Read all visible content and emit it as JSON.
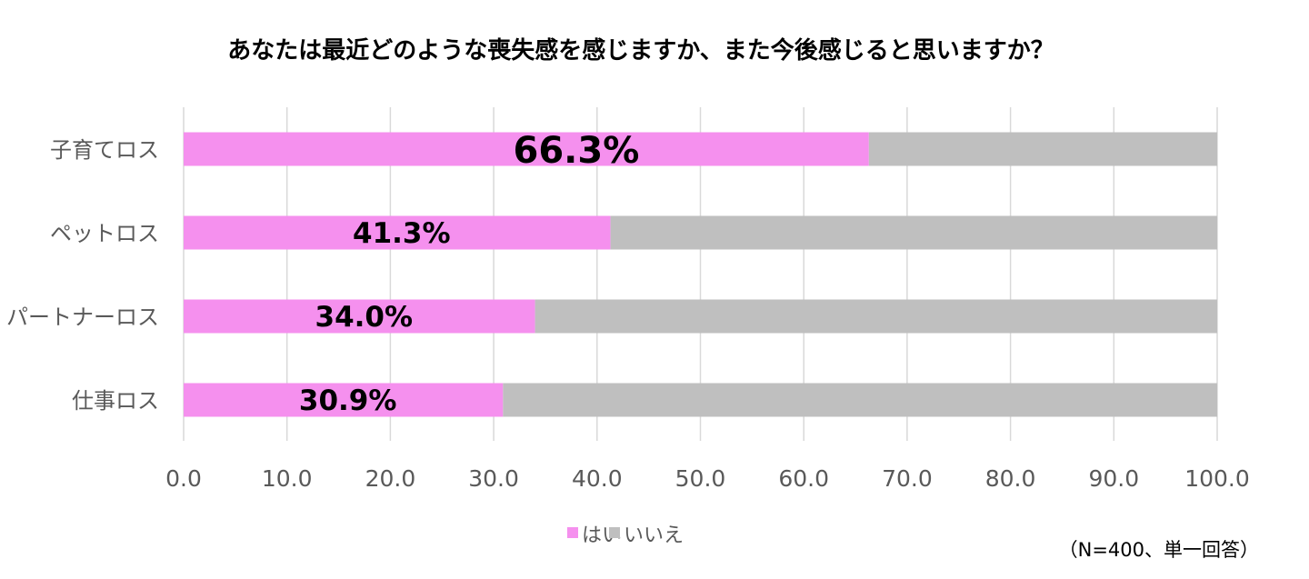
{
  "chart_data": {
    "type": "bar",
    "orientation": "horizontal",
    "stacked": true,
    "title": "あなたは最近どのような喪失感を感じますか、また今後感じると思いますか？",
    "categories": [
      "子育てロス",
      "ペットロス",
      "パートナーロス",
      "仕事ロス"
    ],
    "series": [
      {
        "name": "はい",
        "color": "#F590EE",
        "values": [
          66.3,
          41.3,
          34.0,
          30.9
        ]
      },
      {
        "name": "いいえ",
        "color": "#BFBFBF",
        "values": [
          33.7,
          58.7,
          66.0,
          69.1
        ]
      }
    ],
    "data_labels": [
      "66.3%",
      "41.3%",
      "34.0%",
      "30.9%"
    ],
    "xlim": [
      0,
      100
    ],
    "xticks": [
      "0.0",
      "10.0",
      "20.0",
      "30.0",
      "40.0",
      "50.0",
      "60.0",
      "70.0",
      "80.0",
      "90.0",
      "100.0"
    ],
    "grid": true,
    "legend": "bottom-center",
    "note": "（N=400、単一回答）"
  }
}
